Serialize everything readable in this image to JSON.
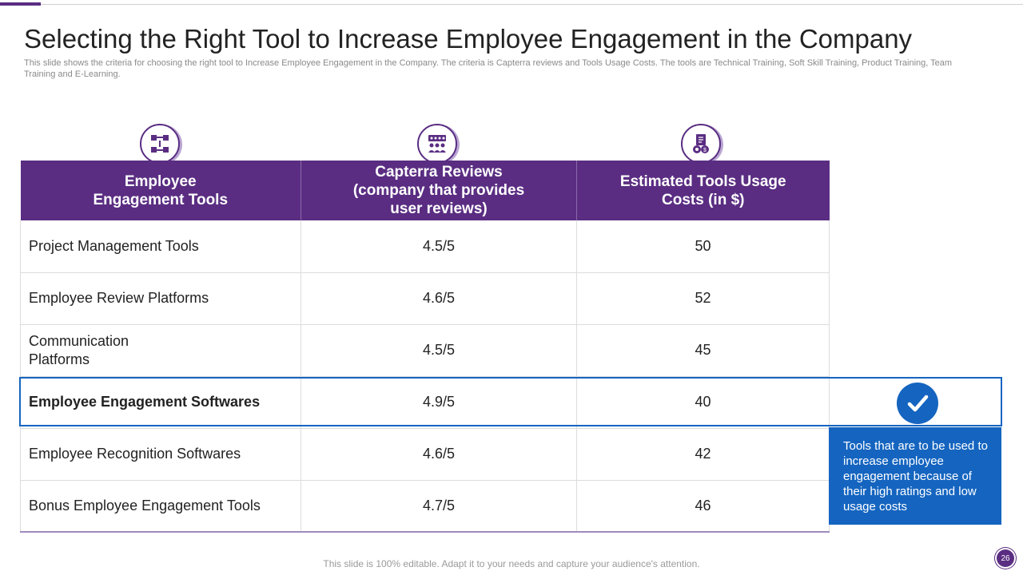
{
  "title": "Selecting the Right Tool to Increase Employee Engagement in the Company",
  "subtitle": "This slide shows the criteria for choosing the right tool to Increase Employee Engagement in the Company. The criteria is Capterra reviews and Tools Usage Costs. The tools are Technical Training, Soft Skill Training, Product Training, Team Training and E-Learning.",
  "icons": [
    "workflow-icon",
    "team-meeting-icon",
    "cost-budget-icon"
  ],
  "table": {
    "headers": [
      "Employee\nEngagement Tools",
      "Capterra Reviews\n(company that provides\nuser reviews)",
      "Estimated Tools Usage\nCosts (in $)"
    ],
    "rows": [
      {
        "tool": "Project Management Tools",
        "review": "4.5/5",
        "cost": "50"
      },
      {
        "tool": "Employee Review Platforms",
        "review": "4.6/5",
        "cost": "52"
      },
      {
        "tool": "Communication\nPlatforms",
        "review": "4.5/5",
        "cost": "45"
      },
      {
        "tool": "Employee Engagement Softwares",
        "review": "4.9/5",
        "cost": "40"
      },
      {
        "tool": "Employee Recognition Softwares",
        "review": "4.6/5",
        "cost": "42"
      },
      {
        "tool": "Bonus Employee Engagement Tools",
        "review": "4.7/5",
        "cost": "46"
      }
    ]
  },
  "note": "Tools that are to be used to increase employee engagement  because of their high ratings and low usage costs",
  "footer": "This slide is 100% editable. Adapt it to your needs and capture your audience's attention.",
  "page_number": "26",
  "colors": {
    "purple": "#5a2d82",
    "blue": "#1565c0"
  }
}
